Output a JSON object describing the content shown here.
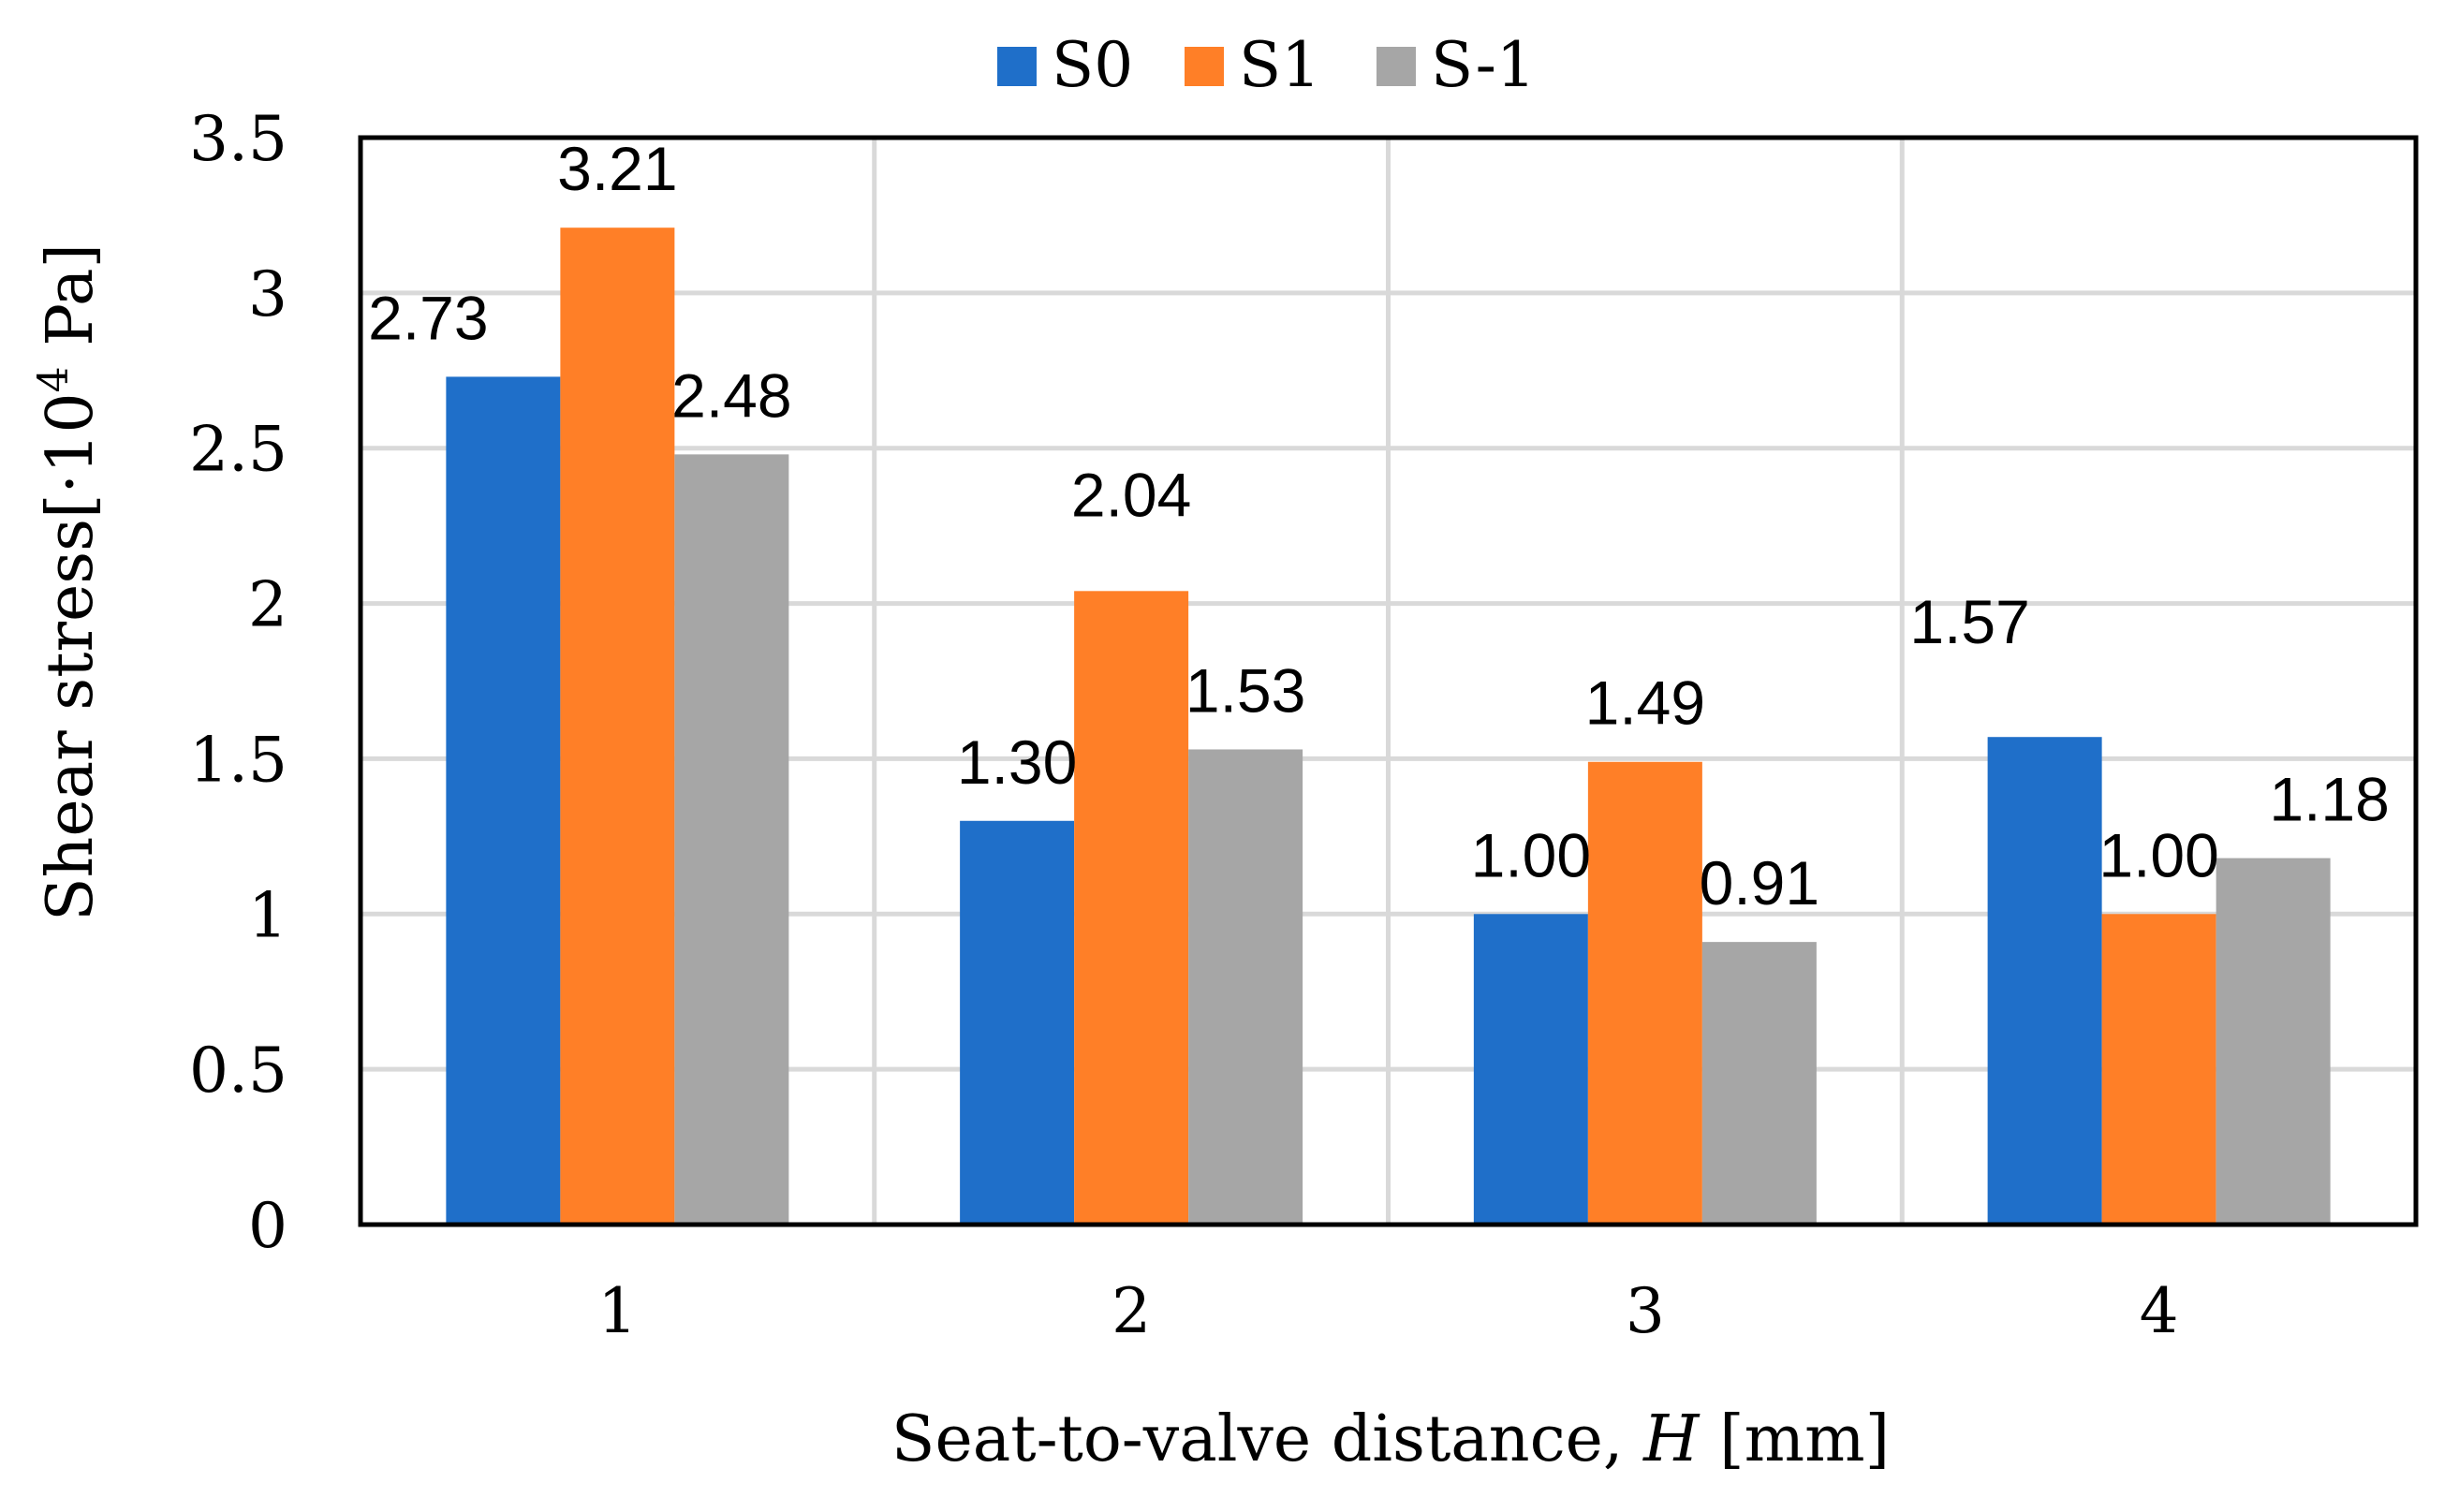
{
  "chart_data": {
    "type": "bar",
    "categories": [
      "1",
      "2",
      "3",
      "4"
    ],
    "series": [
      {
        "name": "S0",
        "color": "#1f6fc9",
        "values": [
          2.73,
          1.3,
          1.0,
          1.57
        ],
        "labels": [
          "2.73",
          "1.30",
          "1.00",
          "1.57"
        ]
      },
      {
        "name": "S1",
        "color": "#ff7f27",
        "values": [
          3.21,
          2.04,
          1.49,
          1.0
        ],
        "labels": [
          "3.21",
          "2.04",
          "1.49",
          "1.00"
        ]
      },
      {
        "name": "S-1",
        "color": "#a6a6a6",
        "values": [
          2.48,
          1.53,
          0.91,
          1.18
        ],
        "labels": [
          "2.48",
          "1.53",
          "0.91",
          "1.18"
        ]
      }
    ],
    "xlabel_main": "Seat-to-valve distance, ",
    "xlabel_var": "H",
    "xlabel_unit": " [mm]",
    "ylabel_main": "Shear stress[·10",
    "ylabel_exp": "4",
    "ylabel_unit": " Pa]",
    "ylim": [
      0,
      3.5
    ],
    "yticks": [
      "0",
      "0.5",
      "1",
      "1.5",
      "2",
      "2.5",
      "3",
      "3.5"
    ],
    "grid": true,
    "legend_position": "top-center"
  }
}
